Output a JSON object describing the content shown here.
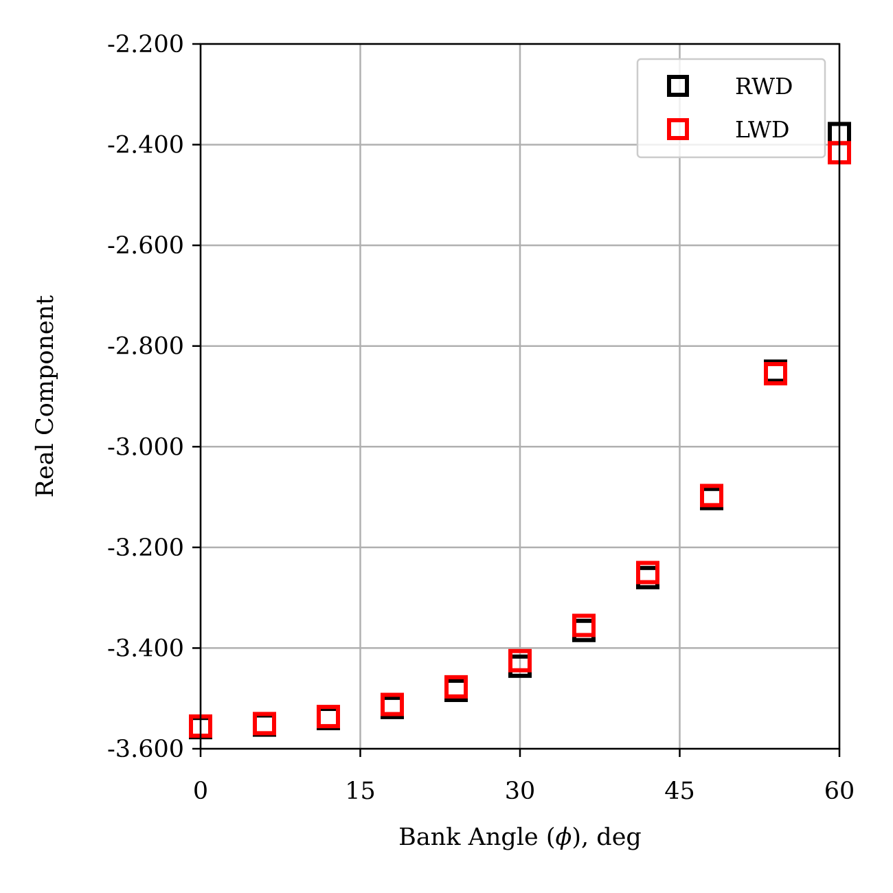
{
  "chart_data": {
    "type": "scatter",
    "title": "",
    "xlabel_prefix": "Bank Angle (",
    "xlabel_symbol": "ϕ",
    "xlabel_suffix": "), deg",
    "ylabel": "Real Component",
    "xlim": [
      0,
      60
    ],
    "ylim": [
      -3.6,
      -2.2
    ],
    "x_ticks": [
      0,
      15,
      30,
      45,
      60
    ],
    "x_tick_labels": [
      "0",
      "15",
      "30",
      "45",
      "60"
    ],
    "y_ticks": [
      -3.6,
      -3.4,
      -3.2,
      -3.0,
      -2.8,
      -2.6,
      -2.4,
      -2.2
    ],
    "y_tick_labels": [
      "-3.600",
      "-3.400",
      "-3.200",
      "-3.000",
      "-2.800",
      "-2.600",
      "-2.400",
      "-2.200"
    ],
    "grid": true,
    "legend_position": "top-right",
    "series": [
      {
        "name": "RWD",
        "color": "#000000",
        "marker": "square",
        "x": [
          0,
          6,
          12,
          18,
          24,
          30,
          36,
          42,
          48,
          54,
          60
        ],
        "y": [
          -3.558,
          -3.553,
          -3.54,
          -3.518,
          -3.484,
          -3.436,
          -3.365,
          -3.26,
          -3.103,
          -2.85,
          -2.378
        ]
      },
      {
        "name": "LWD",
        "color": "#ff0000",
        "marker": "square",
        "x": [
          0,
          6,
          12,
          18,
          24,
          30,
          36,
          42,
          48,
          54,
          60
        ],
        "y": [
          -3.555,
          -3.55,
          -3.536,
          -3.512,
          -3.477,
          -3.425,
          -3.355,
          -3.25,
          -3.097,
          -2.855,
          -2.416
        ]
      }
    ]
  }
}
